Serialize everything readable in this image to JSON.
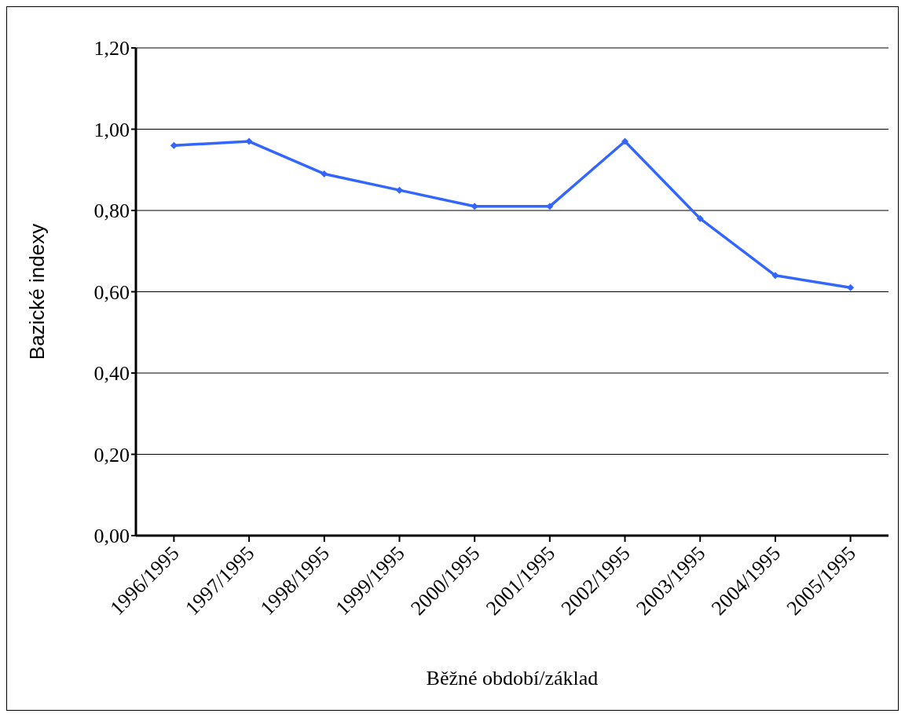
{
  "chart_data": {
    "type": "line",
    "xlabel": "Běžné období/základ",
    "ylabel": "Bazické indexy",
    "categories": [
      "1996/1995",
      "1997/1995",
      "1998/1995",
      "1999/1995",
      "2000/1995",
      "2001/1995",
      "2002/1995",
      "2003/1995",
      "2004/1995",
      "2005/1995"
    ],
    "series": [
      {
        "color": "#3366ff",
        "values": [
          0.96,
          0.97,
          0.89,
          0.85,
          0.81,
          0.81,
          0.97,
          0.78,
          0.64,
          0.61
        ]
      }
    ],
    "ylim": [
      0,
      1.2
    ],
    "yticks": [
      {
        "value": 0,
        "label": "0,00"
      },
      {
        "value": 0.2,
        "label": "0,20"
      },
      {
        "value": 0.4,
        "label": "0,40"
      },
      {
        "value": 0.6,
        "label": "0,60"
      },
      {
        "value": 0.8,
        "label": "0,80"
      },
      {
        "value": 1,
        "label": "1,00"
      },
      {
        "value": 1.2,
        "label": "1,20"
      }
    ],
    "grid": "y",
    "marker": "diamond",
    "line_style": "solid",
    "legend": false
  }
}
